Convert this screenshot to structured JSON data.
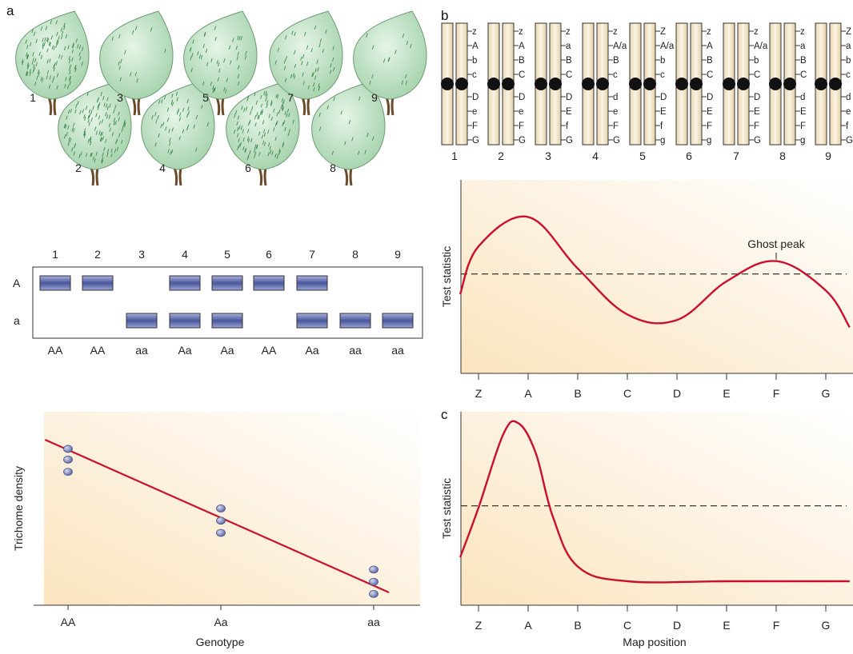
{
  "panel_labels": {
    "a": "a",
    "b": "b",
    "c": "c"
  },
  "leaves": {
    "numbers": [
      "1",
      "2",
      "3",
      "4",
      "5",
      "6",
      "7",
      "8",
      "9"
    ],
    "hair_density": [
      3,
      3,
      1,
      2,
      2,
      3,
      2,
      1,
      1
    ]
  },
  "chromosomes": {
    "numbers": [
      "1",
      "2",
      "3",
      "4",
      "5",
      "6",
      "7",
      "8",
      "9"
    ],
    "labels": [
      [
        "z",
        "A",
        "b",
        "c",
        "D",
        "e",
        "F",
        "G"
      ],
      [
        "z",
        "A",
        "B",
        "C",
        "D",
        "e",
        "F",
        "G"
      ],
      [
        "z",
        "a",
        "B",
        "C",
        "D",
        "E",
        "f",
        "G"
      ],
      [
        "z",
        "A/a",
        "B",
        "c",
        "d",
        "e",
        "F",
        "G"
      ],
      [
        "Z",
        "A/a",
        "b",
        "c",
        "D",
        "E",
        "f",
        "g"
      ],
      [
        "z",
        "A",
        "B",
        "C",
        "D",
        "E",
        "F",
        "g"
      ],
      [
        "z",
        "A/a",
        "b",
        "C",
        "D",
        "E",
        "F",
        "G"
      ],
      [
        "z",
        "a",
        "B",
        "C",
        "d",
        "E",
        "F",
        "g"
      ],
      [
        "Z",
        "a",
        "b",
        "c",
        "d",
        "e",
        "f",
        "G"
      ]
    ]
  },
  "gel": {
    "lanes": [
      "1",
      "2",
      "3",
      "4",
      "5",
      "6",
      "7",
      "8",
      "9"
    ],
    "rows": [
      "A",
      "a"
    ],
    "genotypes": [
      "AA",
      "AA",
      "aa",
      "Aa",
      "Aa",
      "AA",
      "Aa",
      "aa",
      "aa"
    ],
    "band_A": [
      1,
      1,
      0,
      1,
      1,
      1,
      1,
      0,
      0
    ],
    "band_a": [
      0,
      0,
      1,
      1,
      1,
      0,
      1,
      1,
      1
    ]
  },
  "chart_data": [
    {
      "type": "scatter",
      "xlabel": "Genotype",
      "ylabel": "Trichome density",
      "categories": [
        "AA",
        "Aa",
        "aa"
      ],
      "points": [
        {
          "x": "AA",
          "y": 0.94
        },
        {
          "x": "AA",
          "y": 0.87
        },
        {
          "x": "AA",
          "y": 0.79
        },
        {
          "x": "Aa",
          "y": 0.55
        },
        {
          "x": "Aa",
          "y": 0.47
        },
        {
          "x": "Aa",
          "y": 0.39
        },
        {
          "x": "aa",
          "y": 0.15
        },
        {
          "x": "aa",
          "y": 0.07
        },
        {
          "x": "aa",
          "y": -0.01
        }
      ],
      "fit_line": [
        [
          -0.15,
          1.0
        ],
        [
          2.1,
          0.0
        ]
      ]
    },
    {
      "type": "line",
      "ylabel": "Test statistic",
      "categories": [
        "Z",
        "A",
        "B",
        "C",
        "D",
        "E",
        "F",
        "G"
      ],
      "threshold": 0.41,
      "annotation": "Ghost peak",
      "series": [
        {
          "values": [
            [
              -0.37,
              0.3
            ],
            [
              0,
              0.56
            ],
            [
              1,
              0.72
            ],
            [
              2,
              0.44
            ],
            [
              3,
              0.19
            ],
            [
              4,
              0.16
            ],
            [
              5,
              0.37
            ],
            [
              6,
              0.48
            ],
            [
              7,
              0.32
            ],
            [
              7.48,
              0.12
            ]
          ]
        }
      ]
    },
    {
      "type": "line",
      "xlabel": "Map position",
      "ylabel": "Test statistic",
      "categories": [
        "Z",
        "A",
        "B",
        "C",
        "D",
        "E",
        "F",
        "G"
      ],
      "threshold": 0.41,
      "series": [
        {
          "values": [
            [
              -0.37,
              0.13
            ],
            [
              0,
              0.4
            ],
            [
              0.5,
              0.8
            ],
            [
              0.8,
              0.86
            ],
            [
              1.15,
              0.7
            ],
            [
              1.5,
              0.35
            ],
            [
              2,
              0.08
            ],
            [
              3,
              0.0
            ],
            [
              5,
              0.0
            ],
            [
              7.48,
              0.0
            ]
          ]
        }
      ]
    }
  ],
  "colors": {
    "curve": "#c8102e",
    "leaf": "#bfe3c4",
    "band": "#5566aa",
    "chromosome": "#f3e6cc"
  }
}
